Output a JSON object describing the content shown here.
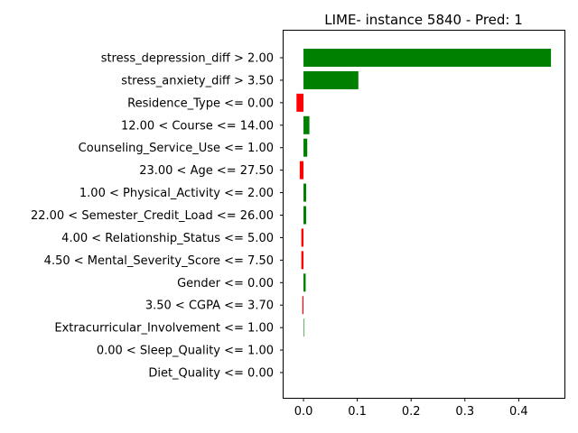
{
  "chart_data": {
    "type": "bar",
    "orientation": "horizontal",
    "title": "LIME- instance 5840 - Pred: 1",
    "xlabel": "",
    "ylabel": "",
    "xlim": [
      -0.037,
      0.485
    ],
    "xticks": [
      0.0,
      0.1,
      0.2,
      0.3,
      0.4
    ],
    "xtick_labels": [
      "0.0",
      "0.1",
      "0.2",
      "0.3",
      "0.4"
    ],
    "grid": false,
    "colors": {
      "positive": "#008000",
      "negative": "#ff0000"
    },
    "categories": [
      "stress_depression_diff > 2.00",
      "stress_anxiety_diff > 3.50",
      "Residence_Type <= 0.00",
      "12.00 < Course <= 14.00",
      "Counseling_Service_Use <= 1.00",
      "23.00 < Age <= 27.50",
      "1.00 < Physical_Activity <= 2.00",
      "22.00 < Semester_Credit_Load <= 26.00",
      "4.00 < Relationship_Status <= 5.00",
      "4.50 < Mental_Severity_Score <= 7.50",
      "Gender <= 0.00",
      "3.50 < CGPA <= 3.70",
      "Extracurricular_Involvement <= 1.00",
      "0.00 < Sleep_Quality <= 1.00",
      "Diet_Quality <= 0.00"
    ],
    "values": [
      0.46,
      0.102,
      -0.013,
      0.011,
      0.007,
      -0.007,
      0.005,
      0.005,
      -0.004,
      -0.004,
      0.004,
      -0.002,
      0.001,
      0.0,
      0.0
    ]
  }
}
